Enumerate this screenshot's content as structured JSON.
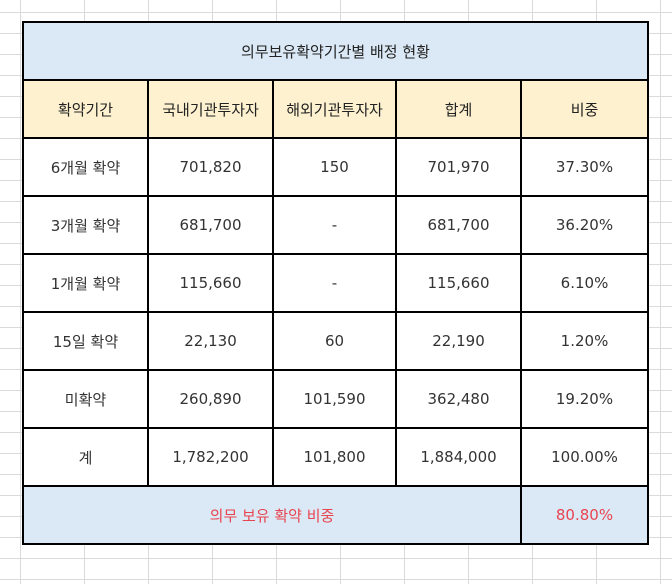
{
  "table": {
    "title": "의무보유확약기간별 배정 현황",
    "headers": [
      "확약기간",
      "국내기관투자자",
      "해외기관투자자",
      "합계",
      "비중"
    ],
    "rows": [
      [
        "6개월 확약",
        "701,820",
        "150",
        "701,970",
        "37.30%"
      ],
      [
        "3개월 확약",
        "681,700",
        "-",
        "681,700",
        "36.20%"
      ],
      [
        "1개월 확약",
        "115,660",
        "-",
        "115,660",
        "6.10%"
      ],
      [
        "15일 확약",
        "22,130",
        "60",
        "22,190",
        "1.20%"
      ],
      [
        "미확약",
        "260,890",
        "101,590",
        "362,480",
        "19.20%"
      ],
      [
        "계",
        "1,782,200",
        "101,800",
        "1,884,000",
        "100.00%"
      ]
    ],
    "footer": {
      "label": "의무 보유 확약 비중",
      "value": "80.80%"
    }
  },
  "colors": {
    "title_bg": "#dbe9f6",
    "header_bg": "#fdf1cf",
    "footer_bg": "#dbe9f6",
    "footer_text": "#e8444f",
    "border": "#000000"
  }
}
